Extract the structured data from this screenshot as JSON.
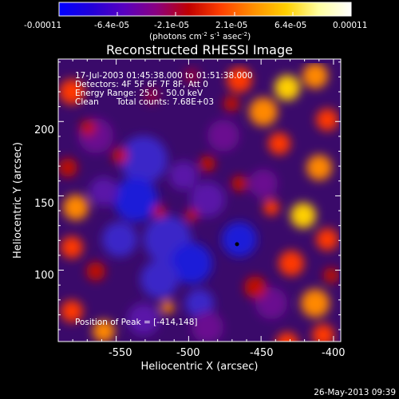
{
  "colorbar": {
    "tick_labels": [
      "-0.00011",
      "-6.4e-05",
      "-2.1e-05",
      "2.1e-05",
      "6.4e-05",
      "0.00011"
    ],
    "units_main": "(photons cm",
    "units_exp1": "-2",
    "units_mid": " s",
    "units_exp2": "-1",
    "units_tail": " asec",
    "units_exp3": "-2",
    "units_close": ")",
    "colors": [
      "#0000ff",
      "#2200d8",
      "#5800c0",
      "#8a0080",
      "#c00000",
      "#ff4000",
      "#ff9000",
      "#ffd000",
      "#ffffa0",
      "#ffffff"
    ]
  },
  "title": "Reconstructed RHESSI Image",
  "overlay": {
    "time_range": "17-Jul-2003 01:45:38.000 to 01:51:38.000",
    "detectors": "Detectors: 4F 5F 6F 7F 8F, Att 0",
    "energy_range": "Energy Range: 25.0 - 50.0 keV",
    "clean_label": "Clean",
    "total_counts": "Total counts: 7.68E+03",
    "peak_position": "Position of Peak = [-414,148]"
  },
  "chart_data": {
    "type": "heatmap",
    "title": "Reconstructed RHESSI Image",
    "xlabel": "Heliocentric X (arcsec)",
    "ylabel": "Heliocentric Y (arcsec)",
    "x_ticks": [
      "-550",
      "-500",
      "-450",
      "-400"
    ],
    "y_ticks": [
      "100",
      "150",
      "200"
    ],
    "x_tick_values": [
      -550,
      -500,
      -450,
      -400
    ],
    "y_tick_values": [
      100,
      150,
      200
    ],
    "xlim": [
      -590,
      -395
    ],
    "ylim": [
      52,
      242
    ],
    "clim": [
      -0.00011,
      0.00011
    ],
    "peak": [
      -414,
      148
    ]
  },
  "footer_date": "26-May-2013 09:39"
}
